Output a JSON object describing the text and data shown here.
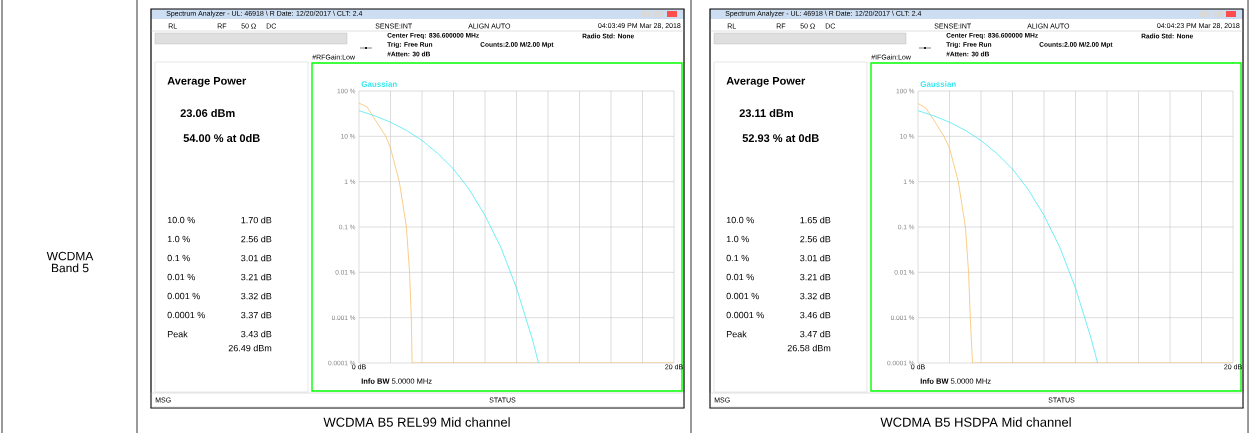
{
  "chart_data": [
    {
      "type": "line",
      "title": "WCDMA B5 REL99 Mid channel",
      "xlim": [
        0,
        20
      ],
      "xticks": [
        {
          "value": 0,
          "label": "0 dB"
        },
        {
          "value": 2,
          "label": null
        },
        {
          "value": 4,
          "label": null
        },
        {
          "value": 6,
          "label": null
        },
        {
          "value": 8,
          "label": null
        },
        {
          "value": 10,
          "label": null
        },
        {
          "value": 12,
          "label": null
        },
        {
          "value": 14,
          "label": null
        },
        {
          "value": 16,
          "label": null
        },
        {
          "value": 18,
          "label": null
        },
        {
          "value": 20,
          "label": "20 dB"
        }
      ],
      "ylim": [
        0.0001,
        100
      ],
      "yticks": [
        {
          "value": 100,
          "label": "100 %"
        },
        {
          "value": 10,
          "label": "10 %"
        },
        {
          "value": 1,
          "label": "1 %"
        },
        {
          "value": 0.1,
          "label": "0.1 %"
        },
        {
          "value": 0.01,
          "label": "0.01 %"
        },
        {
          "value": 0.001,
          "label": "0.001 %"
        },
        {
          "value": 0.0001,
          "label": "0.0001 %"
        }
      ],
      "log": "y",
      "grid": true,
      "series": [
        {
          "color": "#f8b858",
          "x": [
            0,
            0.5,
            1,
            1.7,
            2,
            2.56,
            3.01,
            3.21,
            3.32,
            3.37,
            3.43,
            20
          ],
          "values": [
            54.0,
            45,
            24,
            10,
            5.5,
            1,
            0.1,
            0.01,
            0.001,
            0.0001,
            0.0001,
            0.0001
          ]
        },
        {
          "name": "Gaussian",
          "color": "#33e8f0",
          "x": [
            0,
            1,
            2,
            3,
            4,
            5,
            6,
            7,
            8,
            9,
            10,
            11,
            11.4
          ],
          "values": [
            36.8,
            28.4,
            20.5,
            13.6,
            8.1,
            4.2,
            1.9,
            0.67,
            0.18,
            0.036,
            0.0045,
            0.00034,
            0.0001
          ]
        }
      ],
      "annotations": [
        "Spectrum Analyzer - UL: 46918 \\ R Date: 12/20/2017 \\ CLT: 2.4",
        "RL",
        "RF",
        "50 Ω",
        "DC",
        "SENSE:INT",
        "ALIGN AUTO",
        "04:03:49 PM Mar 28, 2018",
        "Center Freq: 836.600000 MHz",
        "Trig: Free Run",
        "#Atten: 30 dB",
        "Counts:2.00 M/2.00 Mpt",
        "Radio Std: None",
        "#RFGain:Low",
        "Average Power",
        "23.06 dBm",
        "54.00 % at 0dB",
        "10.0 %",
        "1.70 dB",
        "1.0 %",
        "2.56 dB",
        "0.1 %",
        "3.01 dB",
        "0.01 %",
        "3.21 dB",
        "0.001 %",
        "3.32 dB",
        "0.0001 %",
        "3.37 dB",
        "Peak",
        "3.43 dB",
        "26.49 dBm",
        "**Info BW** 5.0000 MHz",
        "MSG",
        "STATUS",
        "WCDMA Band 5"
      ]
    },
    {
      "type": "line",
      "title": "WCDMA B5 HSDPA Mid channel",
      "xlim": [
        0,
        20
      ],
      "xticks": [
        {
          "value": 0,
          "label": "0 dB"
        },
        {
          "value": 2,
          "label": null
        },
        {
          "value": 4,
          "label": null
        },
        {
          "value": 6,
          "label": null
        },
        {
          "value": 8,
          "label": null
        },
        {
          "value": 10,
          "label": null
        },
        {
          "value": 12,
          "label": null
        },
        {
          "value": 14,
          "label": null
        },
        {
          "value": 16,
          "label": null
        },
        {
          "value": 18,
          "label": null
        },
        {
          "value": 20,
          "label": "20 dB"
        }
      ],
      "ylim": [
        0.0001,
        100
      ],
      "yticks": [
        {
          "value": 100,
          "label": "100 %"
        },
        {
          "value": 10,
          "label": "10 %"
        },
        {
          "value": 1,
          "label": "1 %"
        },
        {
          "value": 0.1,
          "label": "0.1 %"
        },
        {
          "value": 0.01,
          "label": "0.01 %"
        },
        {
          "value": 0.001,
          "label": "0.001 %"
        },
        {
          "value": 0.0001,
          "label": "0.0001 %"
        }
      ],
      "log": "y",
      "grid": true,
      "series": [
        {
          "color": "#f8b858",
          "x": [
            0,
            0.5,
            1,
            1.65,
            2,
            2.56,
            3.01,
            3.21,
            3.32,
            3.46,
            3.47,
            20
          ],
          "values": [
            52.93,
            42,
            23,
            10,
            5.5,
            1,
            0.1,
            0.01,
            0.001,
            0.0001,
            0.0001,
            0.0001
          ]
        },
        {
          "name": "Gaussian",
          "color": "#33e8f0",
          "x": [
            0,
            1,
            2,
            3,
            4,
            5,
            6,
            7,
            8,
            9,
            10,
            11,
            11.4
          ],
          "values": [
            36.8,
            28.4,
            20.5,
            13.6,
            8.1,
            4.2,
            1.9,
            0.67,
            0.18,
            0.036,
            0.0045,
            0.00034,
            0.0001
          ]
        }
      ],
      "annotations": [
        "Spectrum Analyzer - UL: 46918 \\ R Date: 12/20/2017 \\ CLT: 2.4",
        "RL",
        "RF",
        "50 Ω",
        "DC",
        "SENSE:INT",
        "ALIGN AUTO",
        "04:04:23 PM Mar 28, 2018",
        "Center Freq: 836.600000 MHz",
        "Trig: Free Run",
        "#Atten: 30 dB",
        "Counts:2.00 M/2.00 Mpt",
        "Radio Std: None",
        "#IFGain:Low",
        "Average Power",
        "23.11 dBm",
        "52.93 % at 0dB",
        "10.0 %",
        "1.65 dB",
        "1.0 %",
        "2.56 dB",
        "0.1 %",
        "3.01 dB",
        "0.01 %",
        "3.21 dB",
        "0.001 %",
        "3.32 dB",
        "0.0001 %",
        "3.46 dB",
        "Peak",
        "3.47 dB",
        "26.58 dBm",
        "**Info BW** 5.0000 MHz",
        "MSG",
        "STATUS"
      ]
    }
  ]
}
